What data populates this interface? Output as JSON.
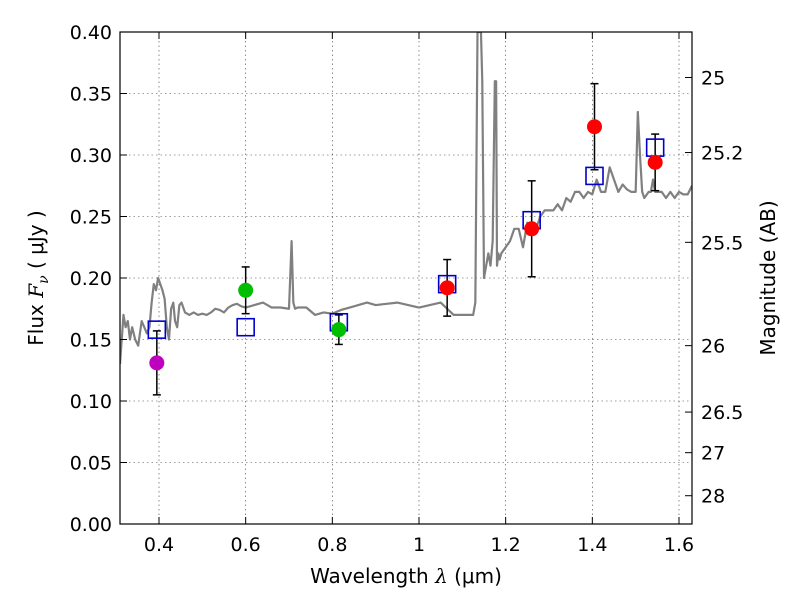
{
  "chart_data": {
    "type": "scatter",
    "xlabel_prefix": "Wavelength",
    "xlabel_math": "λ",
    "xlabel_unit": "(μm)",
    "ylabel_prefix": "Flux",
    "ylabel_math": "F",
    "ylabel_sub": "ν",
    "ylabel_unit": "( μJy )",
    "y2label": "Magnitude (AB)",
    "xlim": [
      0.31,
      1.63
    ],
    "ylim": [
      0.0,
      0.4
    ],
    "xticks": [
      0.4,
      0.6,
      0.8,
      1.0,
      1.2,
      1.4,
      1.6
    ],
    "xtick_labels": [
      "0.4",
      "0.6",
      "0.8",
      "1",
      "1.2",
      "1.4",
      "1.6"
    ],
    "yticks": [
      0.0,
      0.05,
      0.1,
      0.15,
      0.2,
      0.25,
      0.3,
      0.35,
      0.4
    ],
    "ytick_labels": [
      "0.00",
      "0.05",
      "0.10",
      "0.15",
      "0.20",
      "0.25",
      "0.30",
      "0.35",
      "0.40"
    ],
    "y2ticks": [
      {
        "label": "25",
        "flux": 0.363
      },
      {
        "label": "25.2",
        "flux": 0.302
      },
      {
        "label": "25.5",
        "flux": 0.229
      },
      {
        "label": "26",
        "flux": 0.145
      },
      {
        "label": "26.5",
        "flux": 0.091
      },
      {
        "label": "27",
        "flux": 0.058
      },
      {
        "label": "28",
        "flux": 0.023
      }
    ],
    "grid": true,
    "template_spectrum": {
      "color": "#808080",
      "x": [
        0.31,
        0.318,
        0.323,
        0.328,
        0.333,
        0.338,
        0.345,
        0.352,
        0.36,
        0.366,
        0.372,
        0.378,
        0.383,
        0.388,
        0.393,
        0.398,
        0.403,
        0.408,
        0.413,
        0.418,
        0.423,
        0.428,
        0.433,
        0.437,
        0.442,
        0.447,
        0.452,
        0.46,
        0.47,
        0.48,
        0.49,
        0.5,
        0.51,
        0.52,
        0.53,
        0.54,
        0.55,
        0.56,
        0.57,
        0.58,
        0.59,
        0.6,
        0.62,
        0.64,
        0.66,
        0.68,
        0.7,
        0.706,
        0.71,
        0.714,
        0.72,
        0.74,
        0.76,
        0.78,
        0.8,
        0.82,
        0.84,
        0.86,
        0.88,
        0.9,
        0.95,
        1.0,
        1.05,
        1.08,
        1.1,
        1.12,
        1.125,
        1.13,
        1.135,
        1.137,
        1.14,
        1.143,
        1.146,
        1.15,
        1.155,
        1.16,
        1.165,
        1.17,
        1.175,
        1.178,
        1.18,
        1.183,
        1.186,
        1.19,
        1.2,
        1.21,
        1.22,
        1.23,
        1.24,
        1.25,
        1.26,
        1.27,
        1.28,
        1.29,
        1.3,
        1.31,
        1.32,
        1.33,
        1.34,
        1.35,
        1.36,
        1.37,
        1.38,
        1.39,
        1.4,
        1.41,
        1.42,
        1.43,
        1.44,
        1.45,
        1.46,
        1.47,
        1.48,
        1.49,
        1.5,
        1.505,
        1.51,
        1.515,
        1.52,
        1.53,
        1.535,
        1.54,
        1.545,
        1.55,
        1.555,
        1.56,
        1.57,
        1.58,
        1.59,
        1.6,
        1.61,
        1.62,
        1.63
      ],
      "y": [
        0.13,
        0.17,
        0.16,
        0.165,
        0.15,
        0.16,
        0.15,
        0.145,
        0.165,
        0.16,
        0.155,
        0.16,
        0.18,
        0.195,
        0.19,
        0.2,
        0.195,
        0.19,
        0.183,
        0.16,
        0.15,
        0.175,
        0.18,
        0.165,
        0.16,
        0.178,
        0.18,
        0.172,
        0.17,
        0.172,
        0.17,
        0.171,
        0.17,
        0.172,
        0.175,
        0.174,
        0.172,
        0.176,
        0.178,
        0.179,
        0.177,
        0.176,
        0.178,
        0.18,
        0.176,
        0.176,
        0.175,
        0.23,
        0.18,
        0.175,
        0.176,
        0.176,
        0.17,
        0.172,
        0.171,
        0.174,
        0.176,
        0.178,
        0.18,
        0.178,
        0.18,
        0.176,
        0.18,
        0.17,
        0.17,
        0.17,
        0.17,
        0.18,
        0.4,
        0.4,
        0.4,
        0.4,
        0.36,
        0.2,
        0.21,
        0.22,
        0.21,
        0.23,
        0.36,
        0.36,
        0.21,
        0.22,
        0.215,
        0.22,
        0.225,
        0.23,
        0.24,
        0.24,
        0.225,
        0.245,
        0.235,
        0.24,
        0.25,
        0.255,
        0.255,
        0.255,
        0.26,
        0.255,
        0.265,
        0.262,
        0.27,
        0.27,
        0.265,
        0.27,
        0.268,
        0.28,
        0.27,
        0.27,
        0.29,
        0.28,
        0.27,
        0.276,
        0.272,
        0.27,
        0.27,
        0.335,
        0.3,
        0.27,
        0.265,
        0.27,
        0.27,
        0.28,
        0.27,
        0.27,
        0.27,
        0.27,
        0.265,
        0.27,
        0.265,
        0.27,
        0.268,
        0.268,
        0.275
      ]
    },
    "model_points": {
      "marker": "square",
      "color": "#0000cc",
      "points": [
        {
          "x": 0.395,
          "y": 0.158
        },
        {
          "x": 0.6,
          "y": 0.16
        },
        {
          "x": 0.815,
          "y": 0.164
        },
        {
          "x": 1.065,
          "y": 0.195
        },
        {
          "x": 1.26,
          "y": 0.247
        },
        {
          "x": 1.405,
          "y": 0.283
        },
        {
          "x": 1.545,
          "y": 0.306
        }
      ]
    },
    "observed_points": {
      "marker": "circle",
      "points": [
        {
          "x": 0.395,
          "y": 0.131,
          "err": 0.026,
          "color": "#bf00bf"
        },
        {
          "x": 0.6,
          "y": 0.19,
          "err": 0.019,
          "color": "#00bf00"
        },
        {
          "x": 0.815,
          "y": 0.158,
          "err": 0.012,
          "color": "#00bf00"
        },
        {
          "x": 1.065,
          "y": 0.192,
          "err": 0.023,
          "color": "#ff0000"
        },
        {
          "x": 1.26,
          "y": 0.24,
          "err": 0.039,
          "color": "#ff0000"
        },
        {
          "x": 1.405,
          "y": 0.323,
          "err": 0.035,
          "color": "#ff0000"
        },
        {
          "x": 1.545,
          "y": 0.294,
          "err": 0.023,
          "color": "#ff0000"
        }
      ]
    }
  }
}
